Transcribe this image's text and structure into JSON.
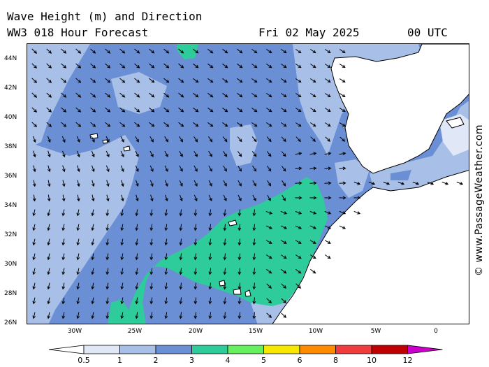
{
  "header": {
    "line1": "Wave Height (m) and Direction",
    "line2": "WW3 018 Hour Forecast",
    "date": "Fri 02 May 2025",
    "time": "00 UTC"
  },
  "axes": {
    "lat_labels": [
      "44N",
      "42N",
      "40N",
      "38N",
      "36N",
      "34N",
      "32N",
      "30N",
      "28N",
      "26N"
    ],
    "lon_labels": [
      "30W",
      "25W",
      "20W",
      "15W",
      "10W",
      "5W",
      "0"
    ]
  },
  "legend": {
    "labels": [
      "0.5",
      "1",
      "2",
      "3",
      "4",
      "5",
      "6",
      "8",
      "10",
      "12"
    ],
    "colors": [
      "#e0e8f8",
      "#a8c0e8",
      "#6b8fd4",
      "#2ecc9a",
      "#66f060",
      "#f8e800",
      "#ff8c00",
      "#f03c3c",
      "#c00000",
      "#cc00cc"
    ]
  },
  "credit": "© www.PassageWeather.com",
  "colors": {
    "sea_light": "#a8c0e8",
    "sea_mid": "#6b8fd4",
    "sea_high": "#2ecc9a",
    "sea_highest": "#66f060",
    "land": "#ffffff"
  }
}
